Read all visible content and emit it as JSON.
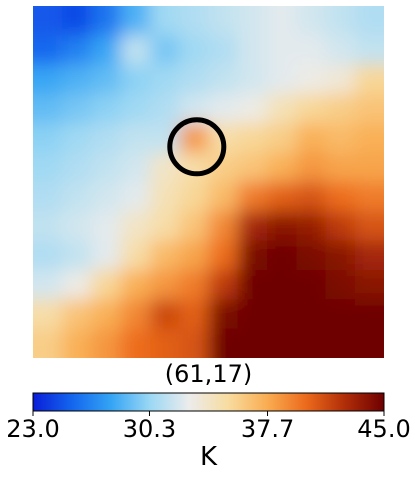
{
  "chart_data": {
    "type": "heatmap",
    "title": "",
    "coordinate_label": "(61,17)",
    "colorbar": {
      "min": 23.0,
      "max": 45.0,
      "ticks": [
        "23.0",
        "30.3",
        "37.7",
        "45.0"
      ],
      "unit": "K",
      "colormap": [
        "#0a1ed8",
        "#1466ee",
        "#34a4f4",
        "#9ad8f4",
        "#ececec",
        "#f8dca0",
        "#f9ad52",
        "#ec6a1c",
        "#b02d08",
        "#6e0000"
      ]
    },
    "field": {
      "description_grid_rows": 12,
      "description_grid_cols": 12,
      "values": [
        [
          25.0,
          24.5,
          26.0,
          28.5,
          30.5,
          31.0,
          31.5,
          32.0,
          32.5,
          32.0,
          31.5,
          31.0
        ],
        [
          25.5,
          26.5,
          28.0,
          31.5,
          29.5,
          30.5,
          31.0,
          32.0,
          32.5,
          32.5,
          32.0,
          31.5
        ],
        [
          28.0,
          28.5,
          29.0,
          30.0,
          30.5,
          31.0,
          31.5,
          32.0,
          32.5,
          33.0,
          33.5,
          35.5
        ],
        [
          29.0,
          29.5,
          30.0,
          30.5,
          31.0,
          32.0,
          32.5,
          33.0,
          34.5,
          35.5,
          36.0,
          36.5
        ],
        [
          30.0,
          30.5,
          31.0,
          31.5,
          31.5,
          38.5,
          35.0,
          35.5,
          36.0,
          37.5,
          37.0,
          37.5
        ],
        [
          30.5,
          31.0,
          31.5,
          32.0,
          34.0,
          35.0,
          36.0,
          36.5,
          37.5,
          38.5,
          38.0,
          38.0
        ],
        [
          31.0,
          31.5,
          32.0,
          32.5,
          34.5,
          35.5,
          37.0,
          39.5,
          40.5,
          41.0,
          40.0,
          39.5
        ],
        [
          31.5,
          32.0,
          32.5,
          34.0,
          35.0,
          36.5,
          39.0,
          43.0,
          44.0,
          43.5,
          42.0,
          41.0
        ],
        [
          31.0,
          31.5,
          32.5,
          35.0,
          37.0,
          38.0,
          40.0,
          44.5,
          45.0,
          44.5,
          44.0,
          43.0
        ],
        [
          32.0,
          33.0,
          35.5,
          37.5,
          38.5,
          39.5,
          42.0,
          45.0,
          45.0,
          45.0,
          44.5,
          44.0
        ],
        [
          35.0,
          36.5,
          37.5,
          39.0,
          41.5,
          40.5,
          44.5,
          45.0,
          45.0,
          45.0,
          45.0,
          45.0
        ],
        [
          36.0,
          37.5,
          38.5,
          40.0,
          40.5,
          41.0,
          45.0,
          45.0,
          45.0,
          45.0,
          45.0,
          45.0
        ]
      ]
    },
    "marker": {
      "shape": "circle",
      "color": "#000000",
      "row": 4.3,
      "col": 5.1
    }
  }
}
